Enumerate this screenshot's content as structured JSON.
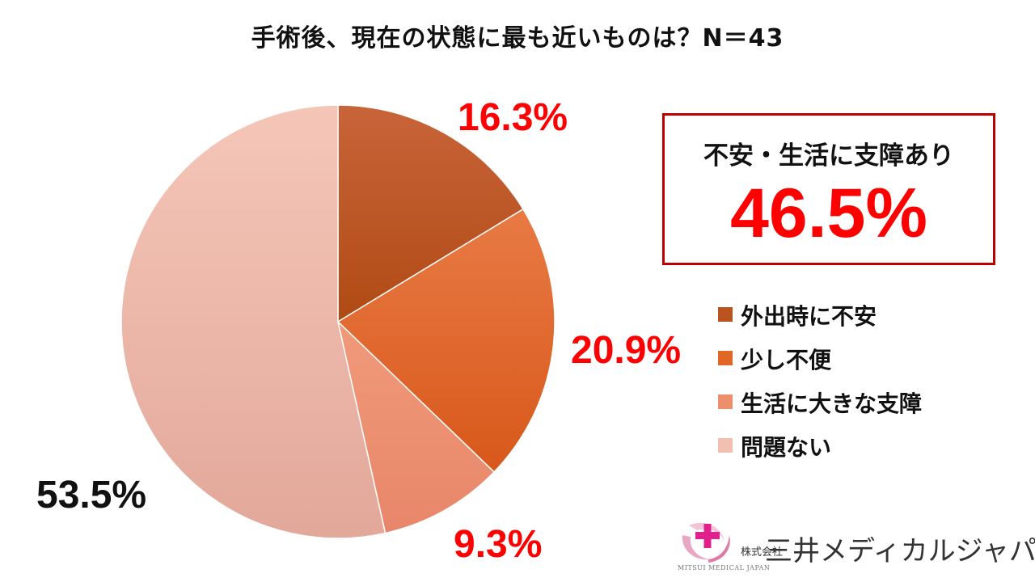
{
  "title": "手術後、現在の状態に最も近いものは？N＝43",
  "chart_data": {
    "type": "pie",
    "categories": [
      "外出時に不安",
      "少し不便",
      "生活に大きな支障",
      "問題ない"
    ],
    "values": [
      16.3,
      20.9,
      9.3,
      53.5
    ],
    "data_labels": [
      "16.3%",
      "20.9%",
      "9.3%",
      "53.5%"
    ],
    "colors": [
      "#b9531f",
      "#e06726",
      "#ec8f6c",
      "#f2bfb1"
    ],
    "label_colors": [
      "#ff0000",
      "#ff0000",
      "#ff0000",
      "#111111"
    ],
    "legend_position": "right"
  },
  "callout": {
    "label": "不安・生活に支障あり",
    "value": "46.5%"
  },
  "logo": {
    "text_small": "株式会社",
    "company": "三井メディカルジャパン",
    "sub": "MITSUI MEDICAL JAPAN"
  }
}
